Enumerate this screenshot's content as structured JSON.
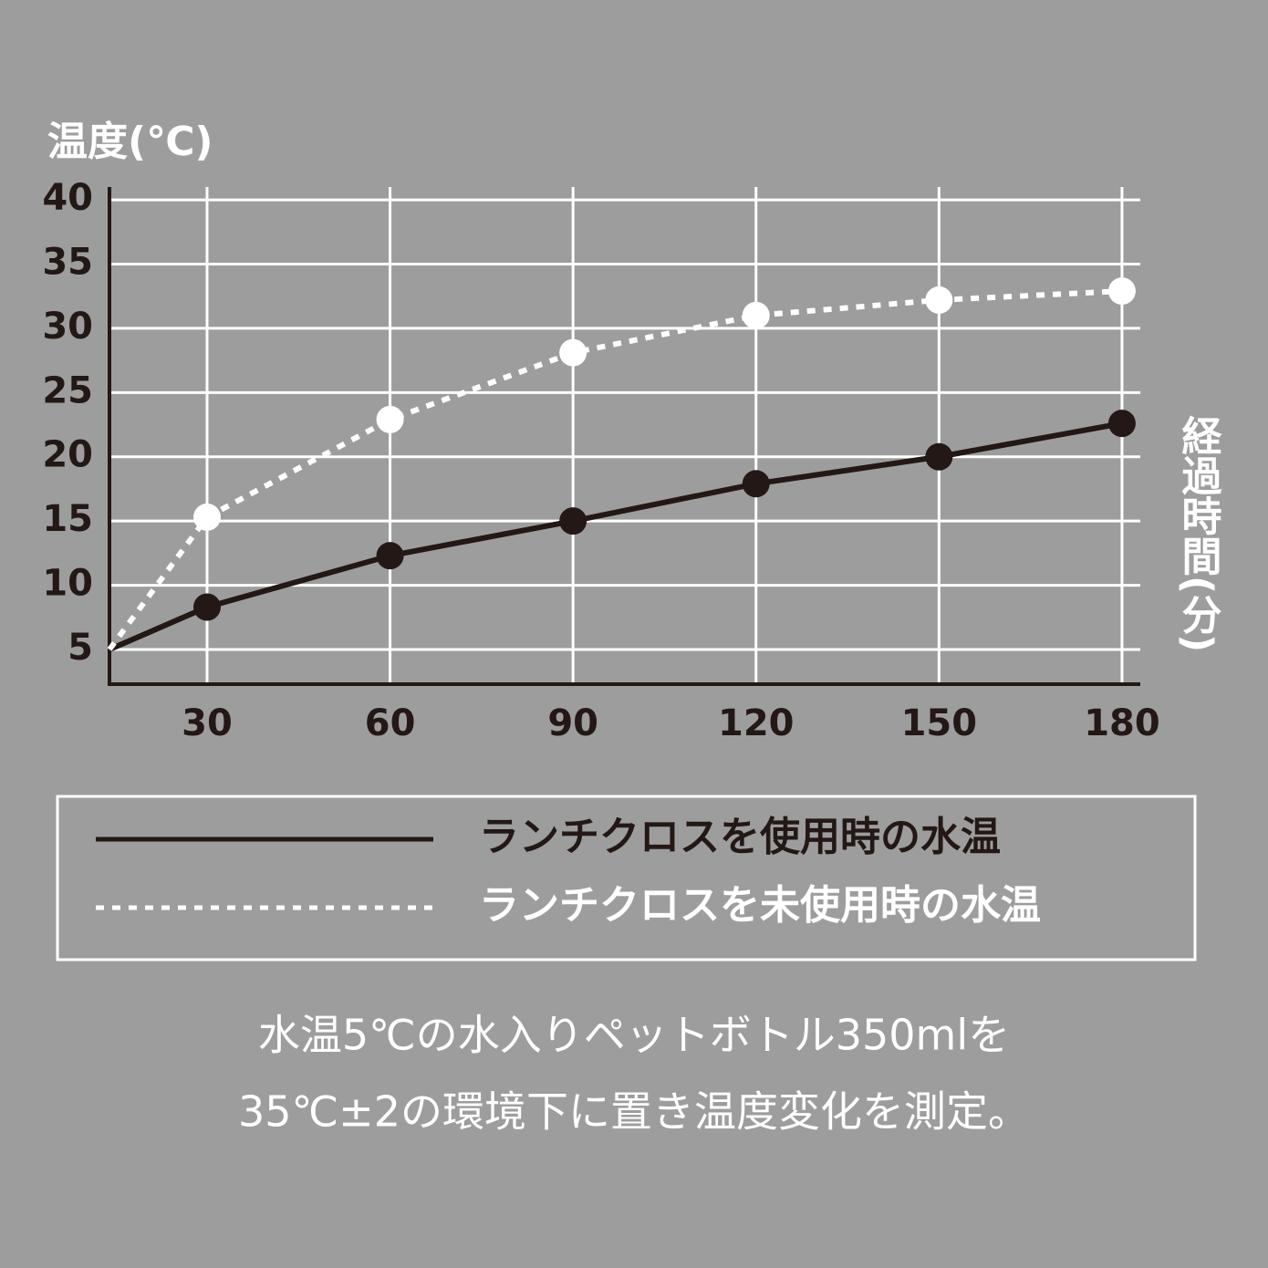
{
  "chart_data": {
    "type": "line",
    "y_label": "温度(℃)",
    "x_label": "経過時間(分)",
    "x": [
      14,
      30,
      60,
      90,
      120,
      150,
      180
    ],
    "xlim": [
      14,
      183
    ],
    "xticks": [
      30,
      60,
      90,
      120,
      150,
      180
    ],
    "ylim": [
      2.3,
      41
    ],
    "yticks": [
      5,
      10,
      15,
      20,
      25,
      30,
      35,
      40
    ],
    "grid": true,
    "series": [
      {
        "name": "ランチクロスを使用時の水温",
        "color": "#231815",
        "style": "solid",
        "values": [
          5,
          8.3,
          12.3,
          15,
          17.9,
          20,
          22.6
        ]
      },
      {
        "name": "ランチクロスを未使用時の水温",
        "color": "#ffffff",
        "style": "dotted",
        "values": [
          5,
          15.3,
          22.9,
          28.1,
          31,
          32.2,
          32.9
        ]
      }
    ],
    "notes": [
      "水温5℃の水入りペットボトル350mlを",
      "35℃±2の環境下に置き温度変化を測定。"
    ]
  }
}
